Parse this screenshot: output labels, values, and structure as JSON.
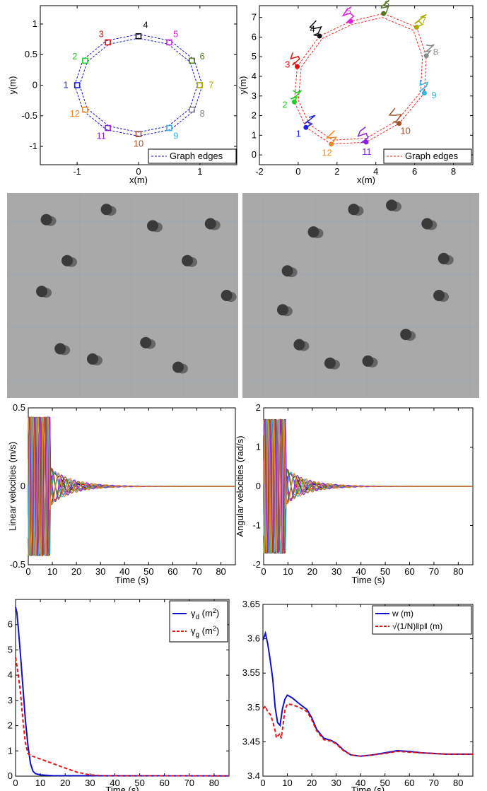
{
  "colors": {
    "robots": [
      "#1f1fe0",
      "#22cc22",
      "#dd1111",
      "#111111",
      "#dd22dd",
      "#557722",
      "#aaaa00",
      "#888888",
      "#33b5e5",
      "#a0522d",
      "#8b22dd",
      "#ee8822"
    ],
    "edge": "#1111cc",
    "edge_right": "#ee2222",
    "photo_floor": "#a9a9a9",
    "photo_grid": "#9aa6b4"
  },
  "chart_data": [
    {
      "type": "scatter",
      "title": "",
      "xlabel": "x(m)",
      "ylabel": "y(m)",
      "xlim": [
        -1.6,
        1.6
      ],
      "ylim": [
        -1.3,
        1.3
      ],
      "xticks": [
        "-1",
        "0",
        "1"
      ],
      "yticks": [
        "-1",
        "-0.5",
        "0",
        "0.5",
        "1"
      ],
      "legend": "Graph edges",
      "legend_position": "bottom-right",
      "points": [
        {
          "label": "1",
          "x": -1.0,
          "y": 0.0
        },
        {
          "label": "2",
          "x": -0.87,
          "y": 0.4
        },
        {
          "label": "3",
          "x": -0.5,
          "y": 0.7
        },
        {
          "label": "4",
          "x": 0.0,
          "y": 0.8
        },
        {
          "label": "5",
          "x": 0.5,
          "y": 0.7
        },
        {
          "label": "6",
          "x": 0.87,
          "y": 0.4
        },
        {
          "label": "7",
          "x": 1.0,
          "y": 0.0
        },
        {
          "label": "8",
          "x": 0.87,
          "y": -0.4
        },
        {
          "label": "9",
          "x": 0.5,
          "y": -0.7
        },
        {
          "label": "10",
          "x": 0.0,
          "y": -0.8
        },
        {
          "label": "11",
          "x": -0.5,
          "y": -0.7
        },
        {
          "label": "12",
          "x": -0.87,
          "y": -0.4
        }
      ]
    },
    {
      "type": "scatter",
      "title": "",
      "xlabel": "x(m)",
      "ylabel": "y(m)",
      "xlim": [
        -2,
        9
      ],
      "ylim": [
        -0.5,
        7.6
      ],
      "xticks": [
        "-2",
        "0",
        "2",
        "4",
        "6",
        "8"
      ],
      "yticks": [
        "0",
        "1",
        "2",
        "3",
        "4",
        "5",
        "6",
        "7"
      ],
      "legend": "Graph edges",
      "legend_position": "bottom-right",
      "points": [
        {
          "label": "1",
          "x": 0.4,
          "y": 1.4
        },
        {
          "label": "2",
          "x": -0.2,
          "y": 2.7
        },
        {
          "label": "3",
          "x": -0.05,
          "y": 4.5
        },
        {
          "label": "4",
          "x": 1.1,
          "y": 6.05
        },
        {
          "label": "5",
          "x": 2.7,
          "y": 6.8
        },
        {
          "label": "6",
          "x": 4.4,
          "y": 7.2
        },
        {
          "label": "7",
          "x": 6.1,
          "y": 6.5
        },
        {
          "label": "8",
          "x": 6.6,
          "y": 5.05
        },
        {
          "label": "9",
          "x": 6.5,
          "y": 3.15
        },
        {
          "label": "10",
          "x": 5.2,
          "y": 1.6
        },
        {
          "label": "11",
          "x": 3.5,
          "y": 0.65
        },
        {
          "label": "12",
          "x": 1.7,
          "y": 0.55
        }
      ]
    },
    {
      "type": "line",
      "title": "",
      "xlabel": "Time (s)",
      "ylabel": "Linear velocities (m/s)",
      "xlim": [
        0,
        86
      ],
      "ylim": [
        -0.5,
        0.5
      ],
      "xticks": [
        "0",
        "10",
        "20",
        "30",
        "40",
        "50",
        "60",
        "70",
        "80"
      ],
      "yticks": [
        "-0.5",
        "0",
        "0.5"
      ],
      "series_count": 12,
      "amplitude": 0.42,
      "saturation": 0.44
    },
    {
      "type": "line",
      "title": "",
      "xlabel": "Time (s)",
      "ylabel": "Angular velocities (rad/s)",
      "xlim": [
        0,
        86
      ],
      "ylim": [
        -2,
        2
      ],
      "xticks": [
        "0",
        "10",
        "20",
        "30",
        "40",
        "50",
        "60",
        "70",
        "80"
      ],
      "yticks": [
        "-2",
        "-1",
        "0",
        "1",
        "2"
      ],
      "series_count": 12,
      "amplitude": 1.6,
      "saturation": 1.7
    },
    {
      "type": "line",
      "title": "",
      "xlabel": "Time (s)",
      "ylabel": "",
      "xlim": [
        0,
        86
      ],
      "ylim": [
        0,
        7
      ],
      "xticks": [
        "0",
        "10",
        "20",
        "30",
        "40",
        "50",
        "60",
        "70",
        "80"
      ],
      "yticks": [
        "0",
        "1",
        "2",
        "3",
        "4",
        "5",
        "6"
      ],
      "legend_position": "top-right",
      "series": [
        {
          "legend": "γ_d (m²)",
          "color": "#1111cc",
          "dash": false,
          "x": [
            0,
            0.5,
            1,
            2,
            3,
            4,
            5,
            6,
            7,
            8,
            10,
            15,
            86
          ],
          "y": [
            6.7,
            6.5,
            6.0,
            4.8,
            3.5,
            2.2,
            1.2,
            0.5,
            0.2,
            0.1,
            0.05,
            0.02,
            0.01
          ]
        },
        {
          "legend": "γ_g (m²)",
          "color": "#ee1111",
          "dash": true,
          "x": [
            0,
            1,
            2,
            3,
            4,
            5,
            6,
            8,
            10,
            15,
            20,
            25,
            30,
            35,
            86
          ],
          "y": [
            4.7,
            4.1,
            3.3,
            2.2,
            1.3,
            0.9,
            0.82,
            0.75,
            0.68,
            0.5,
            0.32,
            0.15,
            0.05,
            0.02,
            0.01
          ]
        }
      ]
    },
    {
      "type": "line",
      "title": "",
      "xlabel": "Time (s)",
      "ylabel": "",
      "xlim": [
        0,
        86
      ],
      "ylim": [
        3.4,
        3.65
      ],
      "xticks": [
        "0",
        "10",
        "20",
        "30",
        "40",
        "50",
        "60",
        "70",
        "80"
      ],
      "yticks": [
        "3.4",
        "3.45",
        "3.5",
        "3.55",
        "3.6",
        "3.65"
      ],
      "legend_position": "top-right",
      "series": [
        {
          "legend": "w (m)",
          "color": "#1111cc",
          "dash": false,
          "x": [
            0,
            1,
            2,
            3,
            4,
            5,
            6,
            7,
            8,
            9,
            10,
            12,
            15,
            18,
            20,
            22,
            25,
            28,
            30,
            33,
            36,
            40,
            45,
            50,
            55,
            60,
            65,
            70,
            75,
            80,
            86
          ],
          "y": [
            3.598,
            3.608,
            3.592,
            3.568,
            3.542,
            3.5,
            3.478,
            3.474,
            3.498,
            3.512,
            3.518,
            3.514,
            3.505,
            3.497,
            3.485,
            3.468,
            3.455,
            3.452,
            3.448,
            3.438,
            3.431,
            3.429,
            3.431,
            3.434,
            3.437,
            3.436,
            3.434,
            3.433,
            3.432,
            3.432,
            3.432
          ]
        },
        {
          "legend": "√(1/N)‖p‖ (m)",
          "color": "#ee1111",
          "dash": true,
          "x": [
            0,
            1,
            2,
            3,
            4,
            5,
            5.5,
            6,
            7,
            7.5,
            8,
            9,
            10,
            12,
            15,
            18,
            20,
            22,
            25,
            28,
            30,
            33,
            36,
            40,
            45,
            50,
            55,
            60,
            65,
            70,
            75,
            80,
            86
          ],
          "y": [
            3.498,
            3.502,
            3.493,
            3.49,
            3.48,
            3.466,
            3.456,
            3.458,
            3.462,
            3.455,
            3.468,
            3.496,
            3.505,
            3.504,
            3.5,
            3.494,
            3.482,
            3.466,
            3.453,
            3.451,
            3.447,
            3.437,
            3.431,
            3.429,
            3.431,
            3.433,
            3.436,
            3.435,
            3.434,
            3.433,
            3.432,
            3.432,
            3.432
          ]
        }
      ]
    }
  ]
}
